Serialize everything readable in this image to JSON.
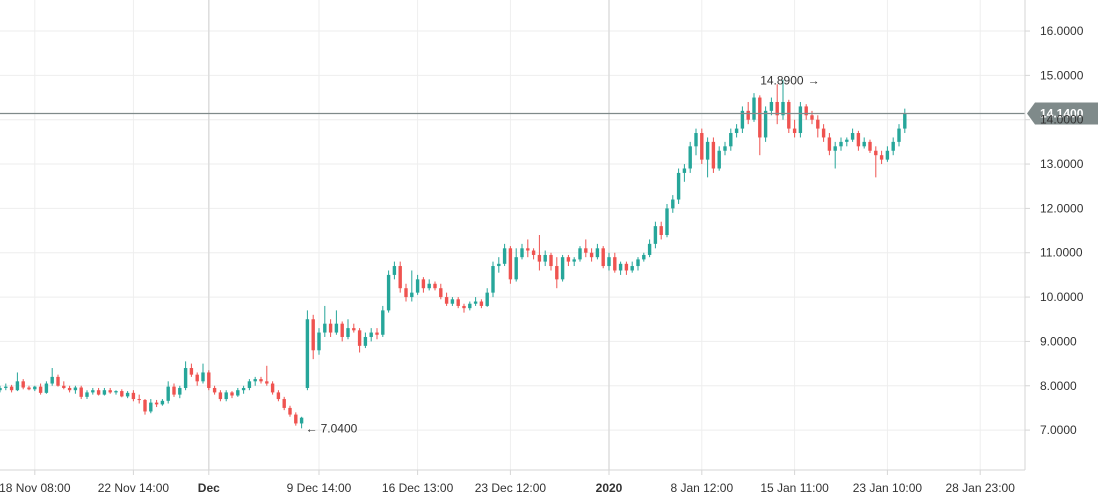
{
  "colors": {
    "up": "#26a69a",
    "down": "#ef5350",
    "grid": "#eeeeee",
    "axis_line": "#d6d6d6",
    "price_line": "#7f8a8a",
    "price_tag": "#7f8a8a",
    "text": "#333333"
  },
  "chart_data": {
    "type": "candlestick",
    "title": "",
    "xlabel": "",
    "ylabel": "",
    "ylim": [
      6.1,
      16.7
    ],
    "grid": true,
    "y_ticks": [
      "7.0000",
      "8.0000",
      "9.0000",
      "10.0000",
      "11.0000",
      "12.0000",
      "13.0000",
      "14.0000",
      "15.0000",
      "16.0000"
    ],
    "x_ticks": [
      {
        "label": "18 Nov 08:00",
        "index": 6,
        "bold": false
      },
      {
        "label": "22 Nov 14:00",
        "index": 23,
        "bold": false
      },
      {
        "label": "Dec",
        "index": 36,
        "bold": true
      },
      {
        "label": "9 Dec 14:00",
        "index": 55,
        "bold": false
      },
      {
        "label": "16 Dec 13:00",
        "index": 72,
        "bold": false
      },
      {
        "label": "23 Dec 12:00",
        "index": 88,
        "bold": false
      },
      {
        "label": "2020",
        "index": 105,
        "bold": true
      },
      {
        "label": "8 Jan 12:00",
        "index": 121,
        "bold": false
      },
      {
        "label": "15 Jan 11:00",
        "index": 137,
        "bold": false
      },
      {
        "label": "23 Jan 10:00",
        "index": 153,
        "bold": false
      },
      {
        "label": "28 Jan 23:00",
        "index": 169,
        "bold": false
      }
    ],
    "vertical_markers": [
      36,
      105
    ],
    "current_price": 14.14,
    "current_price_label": "14.1400",
    "annotations": [
      {
        "label": "14.8900",
        "value": 14.89,
        "index": 142,
        "arrow": "→"
      },
      {
        "label": "7.0400",
        "value": 7.04,
        "index": 52,
        "arrow": "←"
      }
    ],
    "candles": [
      [
        7.9,
        8.0,
        7.85,
        7.95
      ],
      [
        7.95,
        8.05,
        7.9,
        7.98
      ],
      [
        7.98,
        8.02,
        7.85,
        7.9
      ],
      [
        7.9,
        8.3,
        7.88,
        8.1
      ],
      [
        8.1,
        8.15,
        7.92,
        7.96
      ],
      [
        7.96,
        8.0,
        7.9,
        7.92
      ],
      [
        7.92,
        8.0,
        7.88,
        7.98
      ],
      [
        7.98,
        8.05,
        7.8,
        7.84
      ],
      [
        7.84,
        8.1,
        7.82,
        8.05
      ],
      [
        8.05,
        8.4,
        8.0,
        8.2
      ],
      [
        8.2,
        8.25,
        7.98,
        8.0
      ],
      [
        8.0,
        8.1,
        7.92,
        7.95
      ],
      [
        7.95,
        8.0,
        7.85,
        7.9
      ],
      [
        7.9,
        8.0,
        7.82,
        7.96
      ],
      [
        7.96,
        8.0,
        7.7,
        7.75
      ],
      [
        7.75,
        7.9,
        7.7,
        7.85
      ],
      [
        7.85,
        7.95,
        7.8,
        7.9
      ],
      [
        7.9,
        7.95,
        7.78,
        7.8
      ],
      [
        7.8,
        7.95,
        7.78,
        7.9
      ],
      [
        7.9,
        7.95,
        7.82,
        7.85
      ],
      [
        7.85,
        7.9,
        7.8,
        7.88
      ],
      [
        7.88,
        7.92,
        7.74,
        7.76
      ],
      [
        7.76,
        7.88,
        7.72,
        7.84
      ],
      [
        7.84,
        7.9,
        7.65,
        7.7
      ],
      [
        7.7,
        7.8,
        7.6,
        7.68
      ],
      [
        7.68,
        7.7,
        7.35,
        7.42
      ],
      [
        7.42,
        7.7,
        7.38,
        7.62
      ],
      [
        7.62,
        7.68,
        7.52,
        7.58
      ],
      [
        7.58,
        7.7,
        7.55,
        7.66
      ],
      [
        7.66,
        8.1,
        7.6,
        7.98
      ],
      [
        7.98,
        8.05,
        7.75,
        7.8
      ],
      [
        7.8,
        8.0,
        7.72,
        7.95
      ],
      [
        7.95,
        8.55,
        7.9,
        8.4
      ],
      [
        8.4,
        8.5,
        8.2,
        8.25
      ],
      [
        8.25,
        8.3,
        8.0,
        8.1
      ],
      [
        8.1,
        8.5,
        8.05,
        8.3
      ],
      [
        8.3,
        8.35,
        7.9,
        7.95
      ],
      [
        7.95,
        8.0,
        7.8,
        7.85
      ],
      [
        7.85,
        7.9,
        7.65,
        7.7
      ],
      [
        7.7,
        7.9,
        7.65,
        7.85
      ],
      [
        7.85,
        7.88,
        7.72,
        7.78
      ],
      [
        7.78,
        7.95,
        7.75,
        7.9
      ],
      [
        7.9,
        8.0,
        7.82,
        7.95
      ],
      [
        7.95,
        8.15,
        7.9,
        8.1
      ],
      [
        8.1,
        8.2,
        8.0,
        8.15
      ],
      [
        8.15,
        8.2,
        8.05,
        8.1
      ],
      [
        8.1,
        8.45,
        8.0,
        8.05
      ],
      [
        8.05,
        8.1,
        7.8,
        7.85
      ],
      [
        7.85,
        7.9,
        7.65,
        7.7
      ],
      [
        7.7,
        7.75,
        7.45,
        7.5
      ],
      [
        7.5,
        7.55,
        7.3,
        7.35
      ],
      [
        7.35,
        7.4,
        7.1,
        7.15
      ],
      [
        7.15,
        7.3,
        7.04,
        7.28
      ],
      [
        7.95,
        9.7,
        7.9,
        9.5
      ],
      [
        9.5,
        9.6,
        8.6,
        8.8
      ],
      [
        8.8,
        9.3,
        8.7,
        9.2
      ],
      [
        9.2,
        9.8,
        9.1,
        9.4
      ],
      [
        9.4,
        9.5,
        9.1,
        9.2
      ],
      [
        9.2,
        9.7,
        9.15,
        9.4
      ],
      [
        9.4,
        9.45,
        9.0,
        9.1
      ],
      [
        9.1,
        9.5,
        9.05,
        9.3
      ],
      [
        9.3,
        9.4,
        9.2,
        9.25
      ],
      [
        9.25,
        9.3,
        8.75,
        8.9
      ],
      [
        8.9,
        9.2,
        8.85,
        9.1
      ],
      [
        9.1,
        9.3,
        9.0,
        9.2
      ],
      [
        9.2,
        9.3,
        9.05,
        9.15
      ],
      [
        9.15,
        9.8,
        9.1,
        9.7
      ],
      [
        9.7,
        10.6,
        9.65,
        10.5
      ],
      [
        10.5,
        10.8,
        10.4,
        10.7
      ],
      [
        10.7,
        10.8,
        10.1,
        10.2
      ],
      [
        10.2,
        10.3,
        9.9,
        10.0
      ],
      [
        10.0,
        10.6,
        9.9,
        10.1
      ],
      [
        10.1,
        10.5,
        10.05,
        10.4
      ],
      [
        10.4,
        10.45,
        10.1,
        10.2
      ],
      [
        10.2,
        10.4,
        10.15,
        10.3
      ],
      [
        10.3,
        10.35,
        10.15,
        10.2
      ],
      [
        10.2,
        10.3,
        9.95,
        10.0
      ],
      [
        10.0,
        10.1,
        9.8,
        9.85
      ],
      [
        9.85,
        10.0,
        9.8,
        9.95
      ],
      [
        9.95,
        10.0,
        9.75,
        9.8
      ],
      [
        9.8,
        9.85,
        9.65,
        9.75
      ],
      [
        9.75,
        9.9,
        9.7,
        9.85
      ],
      [
        9.85,
        10.0,
        9.8,
        9.9
      ],
      [
        9.9,
        9.95,
        9.75,
        9.8
      ],
      [
        9.8,
        10.2,
        9.78,
        10.1
      ],
      [
        10.1,
        10.8,
        10.0,
        10.7
      ],
      [
        10.7,
        10.9,
        10.55,
        10.75
      ],
      [
        10.75,
        11.2,
        10.7,
        11.1
      ],
      [
        11.1,
        11.15,
        10.3,
        10.4
      ],
      [
        10.4,
        11.1,
        10.35,
        10.9
      ],
      [
        10.9,
        11.2,
        10.85,
        11.1
      ],
      [
        11.1,
        11.3,
        10.9,
        11.05
      ],
      [
        11.05,
        11.1,
        10.85,
        10.95
      ],
      [
        10.95,
        11.4,
        10.6,
        10.8
      ],
      [
        10.8,
        11.05,
        10.7,
        10.95
      ],
      [
        10.95,
        11.0,
        10.6,
        10.7
      ],
      [
        10.7,
        10.9,
        10.2,
        10.4
      ],
      [
        10.4,
        10.95,
        10.35,
        10.9
      ],
      [
        10.9,
        10.95,
        10.7,
        10.8
      ],
      [
        10.8,
        10.9,
        10.7,
        10.85
      ],
      [
        10.85,
        11.15,
        10.8,
        11.1
      ],
      [
        11.1,
        11.3,
        10.9,
        11.0
      ],
      [
        11.0,
        11.1,
        10.8,
        10.9
      ],
      [
        10.9,
        11.2,
        10.85,
        11.1
      ],
      [
        11.1,
        11.15,
        10.65,
        10.7
      ],
      [
        10.7,
        11.0,
        10.6,
        10.9
      ],
      [
        10.9,
        11.0,
        10.55,
        10.6
      ],
      [
        10.6,
        10.8,
        10.5,
        10.75
      ],
      [
        10.75,
        10.8,
        10.5,
        10.6
      ],
      [
        10.6,
        10.8,
        10.55,
        10.7
      ],
      [
        10.7,
        10.9,
        10.6,
        10.85
      ],
      [
        10.85,
        11.0,
        10.8,
        10.95
      ],
      [
        10.95,
        11.3,
        10.9,
        11.2
      ],
      [
        11.2,
        11.7,
        11.1,
        11.6
      ],
      [
        11.6,
        11.7,
        11.3,
        11.4
      ],
      [
        11.4,
        12.1,
        11.35,
        12.0
      ],
      [
        12.0,
        12.3,
        11.9,
        12.2
      ],
      [
        12.2,
        12.9,
        12.1,
        12.8
      ],
      [
        12.8,
        13.0,
        12.6,
        12.9
      ],
      [
        12.9,
        13.5,
        12.8,
        13.4
      ],
      [
        13.4,
        13.8,
        13.2,
        13.7
      ],
      [
        13.7,
        13.8,
        13.0,
        13.1
      ],
      [
        13.1,
        13.6,
        12.7,
        13.5
      ],
      [
        13.5,
        13.6,
        12.8,
        12.9
      ],
      [
        12.9,
        13.4,
        12.85,
        13.3
      ],
      [
        13.3,
        13.5,
        13.2,
        13.4
      ],
      [
        13.4,
        13.8,
        13.3,
        13.7
      ],
      [
        13.7,
        13.9,
        13.6,
        13.8
      ],
      [
        13.8,
        14.3,
        13.7,
        14.2
      ],
      [
        14.2,
        14.4,
        13.9,
        14.0
      ],
      [
        14.0,
        14.6,
        13.95,
        14.5
      ],
      [
        14.5,
        14.55,
        13.2,
        13.6
      ],
      [
        13.6,
        14.3,
        13.5,
        14.2
      ],
      [
        14.2,
        14.5,
        14.1,
        14.4
      ],
      [
        14.4,
        14.8,
        13.9,
        14.1
      ],
      [
        14.1,
        14.9,
        14.0,
        14.4
      ],
      [
        14.4,
        14.45,
        13.7,
        13.8
      ],
      [
        13.8,
        14.0,
        13.6,
        13.7
      ],
      [
        13.7,
        14.4,
        13.6,
        14.3
      ],
      [
        14.3,
        14.35,
        14.0,
        14.1
      ],
      [
        14.1,
        14.2,
        13.9,
        14.0
      ],
      [
        14.0,
        14.1,
        13.6,
        13.8
      ],
      [
        13.8,
        13.9,
        13.5,
        13.6
      ],
      [
        13.6,
        13.7,
        13.2,
        13.3
      ],
      [
        13.3,
        13.5,
        12.9,
        13.4
      ],
      [
        13.4,
        13.6,
        13.3,
        13.5
      ],
      [
        13.5,
        13.6,
        13.4,
        13.55
      ],
      [
        13.55,
        13.8,
        13.5,
        13.7
      ],
      [
        13.7,
        13.75,
        13.3,
        13.4
      ],
      [
        13.4,
        13.6,
        13.35,
        13.5
      ],
      [
        13.5,
        13.55,
        13.25,
        13.3
      ],
      [
        13.3,
        13.4,
        12.7,
        13.2
      ],
      [
        13.2,
        13.3,
        13.0,
        13.1
      ],
      [
        13.1,
        13.4,
        13.05,
        13.3
      ],
      [
        13.3,
        13.6,
        13.2,
        13.5
      ],
      [
        13.5,
        13.9,
        13.4,
        13.8
      ],
      [
        13.8,
        14.25,
        13.7,
        14.14
      ]
    ]
  }
}
